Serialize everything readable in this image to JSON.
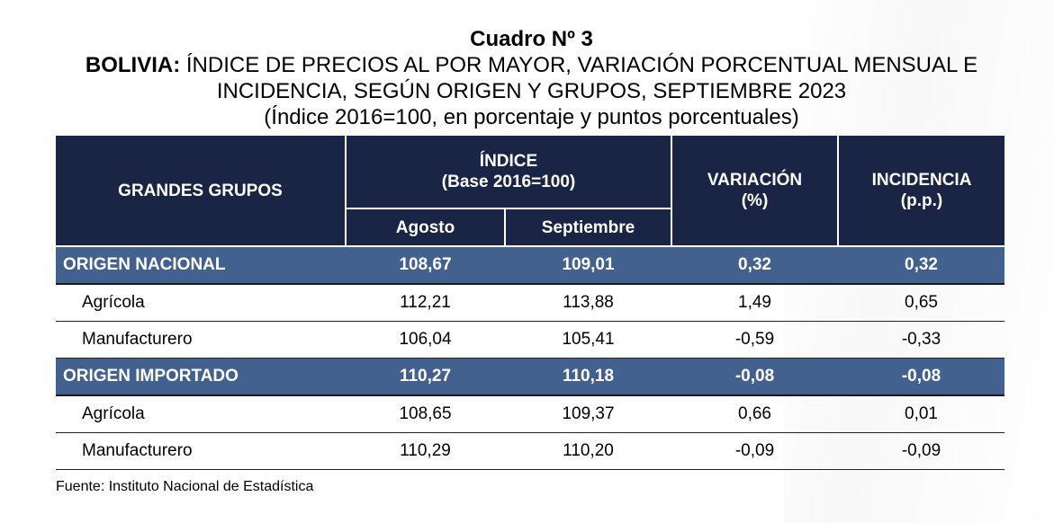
{
  "title": {
    "line1": "Cuadro Nº 3",
    "line2_bold": "BOLIVIA:",
    "line2_rest": " ÍNDICE DE PRECIOS AL POR MAYOR, VARIACIÓN PORCENTUAL MENSUAL E",
    "line3": "INCIDENCIA, SEGÚN ORIGEN Y GRUPOS, SEPTIEMBRE 2023",
    "line4": "(Índice 2016=100, en porcentaje y puntos porcentuales)"
  },
  "headers": {
    "grupos": "GRANDES GRUPOS",
    "indice_line1": "ÍNDICE",
    "indice_line2": "(Base 2016=100)",
    "agosto": "Agosto",
    "septiembre": "Septiembre",
    "variacion_line1": "VARIACIÓN",
    "variacion_line2": "(%)",
    "incidencia_line1": "INCIDENCIA",
    "incidencia_line2": "(p.p.)"
  },
  "rows": [
    {
      "name": "ORIGEN NACIONAL",
      "agosto": "108,67",
      "septiembre": "109,01",
      "variacion": "0,32",
      "incidencia": "0,32"
    },
    {
      "name": "Agrícola",
      "agosto": "112,21",
      "septiembre": "113,88",
      "variacion": "1,49",
      "incidencia": "0,65"
    },
    {
      "name": "Manufacturero",
      "agosto": "106,04",
      "septiembre": "105,41",
      "variacion": "-0,59",
      "incidencia": "-0,33"
    },
    {
      "name": "ORIGEN IMPORTADO",
      "agosto": "110,27",
      "septiembre": "110,18",
      "variacion": "-0,08",
      "incidencia": "-0,08"
    },
    {
      "name": "Agrícola",
      "agosto": "108,65",
      "septiembre": "109,37",
      "variacion": "0,66",
      "incidencia": "0,01"
    },
    {
      "name": "Manufacturero",
      "agosto": "110,29",
      "septiembre": "110,20",
      "variacion": "-0,09",
      "incidencia": "-0,09"
    }
  ],
  "footer": {
    "fuente": "Fuente: Instituto Nacional de Estadística"
  },
  "colors": {
    "header_bg": "#1a2546",
    "group_row_bg": "#43618f"
  }
}
